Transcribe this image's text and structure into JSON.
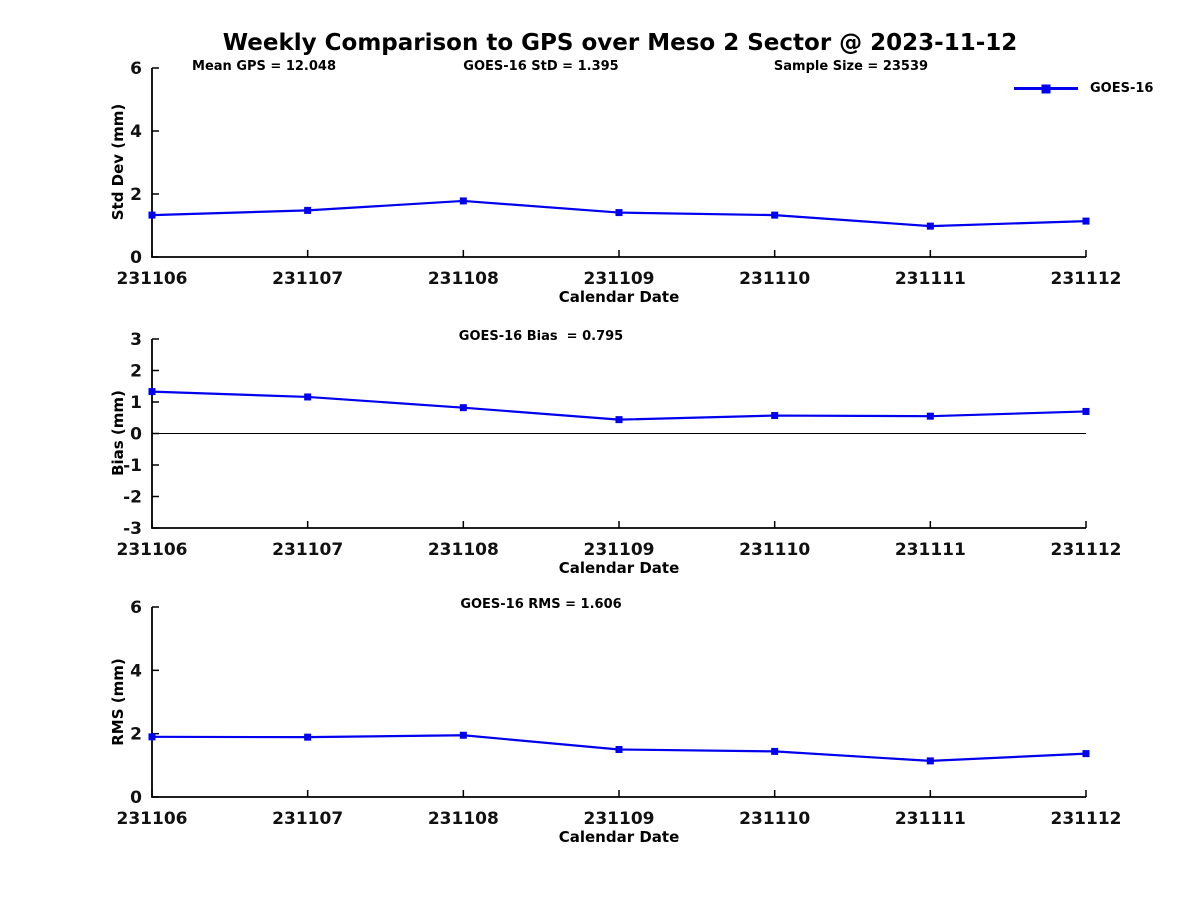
{
  "title": "Weekly Comparison to GPS over Meso 2 Sector @ 2023-11-12",
  "colors": {
    "series": "#0000EE",
    "axis": "#000000",
    "zero_line": "#000000"
  },
  "legend": {
    "label": "GOES-16",
    "position": "top-right"
  },
  "top_annotations": [
    {
      "text": "Mean GPS = 12.048"
    },
    {
      "text": "GOES-16 StD = 1.395"
    },
    {
      "text": "Sample Size = 23539"
    }
  ],
  "chart_data": [
    {
      "type": "line",
      "name": "std-dev",
      "title": "",
      "ylabel": "Std Dev (mm)",
      "xlabel": "Calendar Date",
      "categories": [
        "231106",
        "231107",
        "231108",
        "231109",
        "231110",
        "231111",
        "231112"
      ],
      "series": [
        {
          "name": "GOES-16",
          "values": [
            1.33,
            1.48,
            1.78,
            1.41,
            1.33,
            0.98,
            1.14
          ]
        }
      ],
      "ylim": [
        0,
        6
      ],
      "yticks": [
        0,
        2,
        4,
        6
      ],
      "grid": false,
      "zero_line": false,
      "legend_position": "top-right",
      "marker": "square"
    },
    {
      "type": "line",
      "name": "bias",
      "title": "GOES-16 Bias  = 0.795",
      "ylabel": "Bias (mm)",
      "xlabel": "Calendar Date",
      "categories": [
        "231106",
        "231107",
        "231108",
        "231109",
        "231110",
        "231111",
        "231112"
      ],
      "series": [
        {
          "name": "GOES-16",
          "values": [
            1.33,
            1.16,
            0.82,
            0.44,
            0.57,
            0.55,
            0.7
          ]
        }
      ],
      "ylim": [
        -3,
        3
      ],
      "yticks": [
        -3,
        -2,
        -1,
        0,
        1,
        2,
        3
      ],
      "grid": false,
      "zero_line": true,
      "legend_position": "none",
      "marker": "square"
    },
    {
      "type": "line",
      "name": "rms",
      "title": "GOES-16 RMS = 1.606",
      "ylabel": "RMS (mm)",
      "xlabel": "Calendar Date",
      "categories": [
        "231106",
        "231107",
        "231108",
        "231109",
        "231110",
        "231111",
        "231112"
      ],
      "series": [
        {
          "name": "GOES-16",
          "values": [
            1.9,
            1.89,
            1.95,
            1.5,
            1.44,
            1.14,
            1.37
          ]
        }
      ],
      "ylim": [
        0,
        6
      ],
      "yticks": [
        0,
        2,
        4,
        6
      ],
      "grid": false,
      "zero_line": false,
      "legend_position": "none",
      "marker": "square"
    }
  ]
}
